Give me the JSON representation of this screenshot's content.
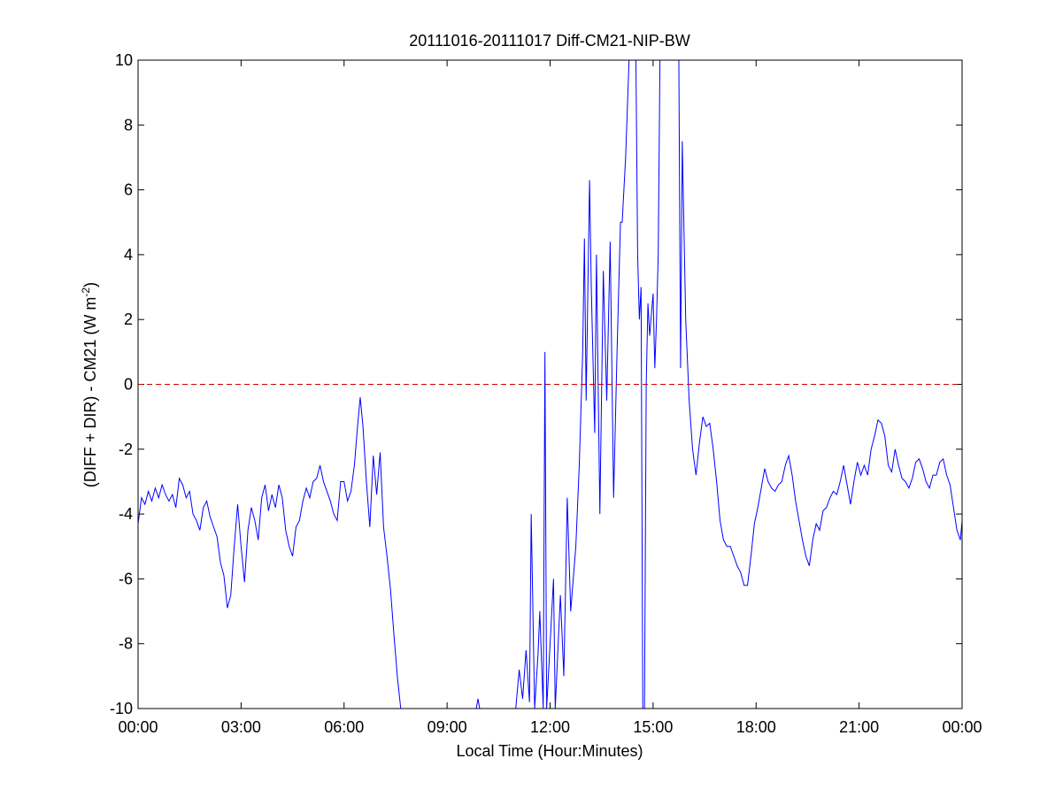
{
  "chart_data": {
    "type": "line",
    "title": "20111016-20111017 Diff-CM21-NIP-BW",
    "xlabel": "Local Time (Hour:Minutes)",
    "ylabel": [
      "(DIFF + DIR) - CM21 (W m",
      "-2",
      ")"
    ],
    "color": "#0000ff",
    "reference_line": {
      "value": 0,
      "color": "#cc0000",
      "style": "dashed"
    },
    "xlim": [
      0,
      24
    ],
    "xticks": [
      {
        "value": 0,
        "label": "00:00"
      },
      {
        "value": 3,
        "label": "03:00"
      },
      {
        "value": 6,
        "label": "06:00"
      },
      {
        "value": 9,
        "label": "09:00"
      },
      {
        "value": 12,
        "label": "12:00"
      },
      {
        "value": 15,
        "label": "15:00"
      },
      {
        "value": 18,
        "label": "18:00"
      },
      {
        "value": 21,
        "label": "21:00"
      },
      {
        "value": 24,
        "label": "00:00"
      }
    ],
    "ylim": [
      -10,
      10
    ],
    "yticks": [
      -10,
      -8,
      -6,
      -4,
      -2,
      0,
      2,
      4,
      6,
      8,
      10
    ],
    "x": [
      0,
      0.1,
      0.2,
      0.3,
      0.4,
      0.5,
      0.6,
      0.7,
      0.8,
      0.9,
      1.0,
      1.1,
      1.2,
      1.3,
      1.4,
      1.5,
      1.6,
      1.7,
      1.8,
      1.9,
      2.0,
      2.1,
      2.2,
      2.3,
      2.4,
      2.5,
      2.6,
      2.7,
      2.8,
      2.9,
      3.0,
      3.1,
      3.2,
      3.3,
      3.4,
      3.5,
      3.6,
      3.7,
      3.8,
      3.9,
      4.0,
      4.1,
      4.2,
      4.3,
      4.4,
      4.5,
      4.6,
      4.7,
      4.8,
      4.9,
      5.0,
      5.1,
      5.2,
      5.3,
      5.4,
      5.5,
      5.6,
      5.7,
      5.8,
      5.9,
      6.0,
      6.1,
      6.2,
      6.3,
      6.4,
      6.47,
      6.55,
      6.65,
      6.75,
      6.85,
      6.95,
      7.05,
      7.15,
      7.25,
      7.35,
      7.45,
      7.55,
      7.65,
      7.7,
      9.85,
      9.9,
      9.95,
      10.0,
      11.0,
      11.1,
      11.2,
      11.3,
      11.4,
      11.45,
      11.55,
      11.65,
      11.7,
      11.8,
      11.85,
      11.9,
      12.0,
      12.1,
      12.15,
      12.3,
      12.4,
      12.5,
      12.6,
      12.75,
      12.85,
      12.95,
      13.0,
      13.05,
      13.15,
      13.2,
      13.3,
      13.35,
      13.45,
      13.55,
      13.65,
      13.75,
      13.85,
      13.95,
      14.05,
      14.1,
      14.2,
      14.3,
      14.4,
      14.5,
      14.55,
      14.6,
      14.65,
      14.7,
      14.72,
      14.75,
      14.8,
      14.85,
      14.9,
      15.0,
      15.05,
      15.1,
      15.15,
      15.2,
      15.5,
      15.75,
      15.8,
      15.85,
      15.95,
      16.05,
      16.15,
      16.25,
      16.35,
      16.45,
      16.55,
      16.65,
      16.75,
      16.85,
      16.95,
      17.05,
      17.15,
      17.25,
      17.35,
      17.45,
      17.55,
      17.65,
      17.75,
      17.85,
      17.95,
      18.05,
      18.15,
      18.25,
      18.35,
      18.45,
      18.55,
      18.65,
      18.75,
      18.85,
      18.95,
      19.05,
      19.15,
      19.25,
      19.35,
      19.45,
      19.55,
      19.65,
      19.75,
      19.85,
      19.95,
      20.05,
      20.15,
      20.25,
      20.35,
      20.45,
      20.55,
      20.65,
      20.75,
      20.85,
      20.95,
      21.05,
      21.15,
      21.25,
      21.35,
      21.45,
      21.55,
      21.65,
      21.75,
      21.85,
      21.95,
      22.05,
      22.15,
      22.25,
      22.35,
      22.45,
      22.55,
      22.65,
      22.75,
      22.85,
      22.95,
      23.05,
      23.15,
      23.25,
      23.35,
      23.45,
      23.55,
      23.65,
      23.75,
      23.85,
      23.95,
      24.0
    ],
    "values": [
      -4.3,
      -3.5,
      -3.7,
      -3.3,
      -3.6,
      -3.2,
      -3.5,
      -3.1,
      -3.4,
      -3.6,
      -3.4,
      -3.8,
      -2.9,
      -3.1,
      -3.5,
      -3.3,
      -4.0,
      -4.2,
      -4.5,
      -3.8,
      -3.6,
      -4.1,
      -4.4,
      -4.7,
      -5.5,
      -5.9,
      -6.9,
      -6.5,
      -5.0,
      -3.7,
      -5.0,
      -6.1,
      -4.5,
      -3.8,
      -4.2,
      -4.8,
      -3.5,
      -3.1,
      -3.9,
      -3.4,
      -3.8,
      -3.1,
      -3.5,
      -4.5,
      -5.0,
      -5.3,
      -4.4,
      -4.2,
      -3.6,
      -3.2,
      -3.5,
      -3.0,
      -2.9,
      -2.5,
      -3.0,
      -3.3,
      -3.6,
      -4.0,
      -4.2,
      -3.0,
      -3.0,
      -3.6,
      -3.3,
      -2.5,
      -1.2,
      -0.4,
      -1.3,
      -3.0,
      -4.4,
      -2.2,
      -3.4,
      -2.1,
      -4.4,
      -5.3,
      -6.3,
      -7.7,
      -9.0,
      -10,
      null,
      -10,
      -9.7,
      -10,
      null,
      -10,
      -8.8,
      -9.7,
      -8.2,
      -9.8,
      -4.0,
      -10,
      -8.3,
      -7.0,
      -10,
      1.0,
      -10,
      -8.0,
      -6.0,
      -10,
      -6.5,
      -9.0,
      -3.5,
      -7.0,
      -5.0,
      -2.5,
      1.0,
      4.5,
      -0.5,
      6.3,
      3.0,
      -1.5,
      4.0,
      -4.0,
      3.5,
      -0.5,
      4.4,
      -3.5,
      1.0,
      5.0,
      5.0,
      7.0,
      10,
      null,
      10,
      4.0,
      2.0,
      3.0,
      -10,
      null,
      -10,
      0.0,
      2.5,
      1.5,
      2.8,
      0.5,
      2.0,
      4.0,
      10,
      null,
      10,
      0.5,
      7.5,
      2.0,
      -0.5,
      -2.0,
      -2.8,
      -1.8,
      -1.0,
      -1.3,
      -1.2,
      -2.0,
      -3.0,
      -4.2,
      -4.8,
      -5.0,
      -5.0,
      -5.3,
      -5.6,
      -5.8,
      -6.2,
      -6.2,
      -5.3,
      -4.3,
      -3.8,
      -3.2,
      -2.6,
      -3.0,
      -3.2,
      -3.3,
      -3.1,
      -3.0,
      -2.5,
      -2.2,
      -2.8,
      -3.6,
      -4.2,
      -4.8,
      -5.3,
      -5.6,
      -4.8,
      -4.3,
      -4.5,
      -3.9,
      -3.8,
      -3.5,
      -3.3,
      -3.4,
      -3.0,
      -2.5,
      -3.1,
      -3.7,
      -3.0,
      -2.4,
      -2.8,
      -2.5,
      -2.8,
      -2.0,
      -1.6,
      -1.1,
      -1.2,
      -1.6,
      -2.5,
      -2.7,
      -2.0,
      -2.5,
      -2.9,
      -3.0,
      -3.2,
      -2.9,
      -2.4,
      -2.3,
      -2.6,
      -3.0,
      -3.2,
      -2.8,
      -2.8,
      -2.4,
      -2.3,
      -2.8,
      -3.1,
      -3.8,
      -4.5,
      -4.8,
      -4.2
    ]
  }
}
